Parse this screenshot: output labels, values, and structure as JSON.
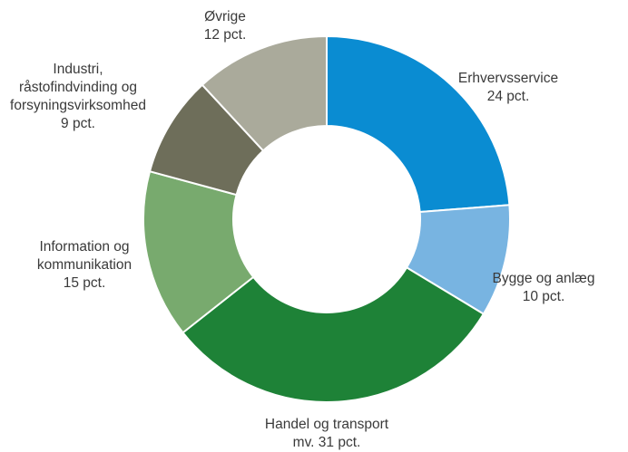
{
  "chart_data": {
    "type": "pie",
    "donut": true,
    "slices": [
      {
        "label": "Erhvervsservice",
        "value_text": "24 pct.",
        "value": 24,
        "color": "#0a8cd2"
      },
      {
        "label": "Bygge og anlæg",
        "value_text": "10 pct.",
        "value": 10,
        "color": "#78b4e1"
      },
      {
        "label": "Handel og transport",
        "value_text": "mv. 31 pct.",
        "value": 31,
        "color": "#1e8237"
      },
      {
        "label": "Information og kommunikation",
        "value_text": "15 pct.",
        "value": 15,
        "color": "#78aa6e"
      },
      {
        "label": "Industri, råstofindvinding og forsyningsvirksomhed",
        "value_text": "9 pct.",
        "value": 9,
        "color": "#6e6e5a"
      },
      {
        "label": "Øvrige",
        "value_text": "12 pct.",
        "value": 12,
        "color": "#aaaa9b"
      }
    ],
    "label_lines": [
      [
        "Erhvervsservice",
        "24 pct."
      ],
      [
        "Bygge og anlæg",
        "10 pct."
      ],
      [
        "Handel og transport",
        "mv. 31 pct."
      ],
      [
        "Information og",
        "kommunikation",
        "15 pct."
      ],
      [
        "Industri,",
        "råstofindvinding og",
        "forsyningsvirksomhed",
        "9 pct."
      ],
      [
        "Øvrige",
        "12 pct."
      ]
    ]
  }
}
